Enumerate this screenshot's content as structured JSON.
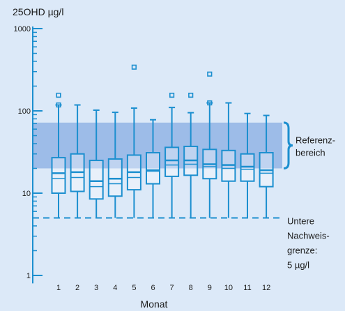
{
  "chart_data": {
    "type": "boxplot",
    "ylabel": "25OHD µg/l",
    "xlabel": "Monat",
    "y_scale": "log",
    "ylim": [
      0.8,
      1000
    ],
    "y_ticks": [
      {
        "value": 1,
        "label": "1"
      },
      {
        "value": 10,
        "label": "10"
      },
      {
        "value": 100,
        "label": "100"
      },
      {
        "value": 1000,
        "label": "1000"
      }
    ],
    "categories": [
      "1",
      "2",
      "3",
      "4",
      "5",
      "6",
      "7",
      "8",
      "9",
      "10",
      "11",
      "12"
    ],
    "boxes": [
      {
        "whisker_low": 5,
        "q1": 10,
        "median": 17.5,
        "q3": 27,
        "whisker_high": 118,
        "mean": 15,
        "outliers": [
          118,
          155
        ]
      },
      {
        "whisker_low": 5,
        "q1": 10.5,
        "median": 18,
        "q3": 30,
        "whisker_high": 118,
        "mean": 15.5,
        "outliers": []
      },
      {
        "whisker_low": 5,
        "q1": 8.5,
        "median": 14,
        "q3": 25,
        "whisker_high": 102,
        "mean": 12,
        "outliers": []
      },
      {
        "whisker_low": 5,
        "q1": 9.2,
        "median": 15,
        "q3": 26,
        "whisker_high": 96,
        "mean": 13,
        "outliers": []
      },
      {
        "whisker_low": 5,
        "q1": 11,
        "median": 18,
        "q3": 29,
        "whisker_high": 108,
        "mean": 15.5,
        "outliers": [
          340
        ]
      },
      {
        "whisker_low": 5,
        "q1": 13,
        "median": 19,
        "q3": 31,
        "whisker_high": 78,
        "mean": 18.5,
        "outliers": []
      },
      {
        "whisker_low": 5,
        "q1": 16,
        "median": 25,
        "q3": 36,
        "whisker_high": 110,
        "mean": 22,
        "outliers": [
          155
        ]
      },
      {
        "whisker_low": 5,
        "q1": 16.5,
        "median": 25,
        "q3": 37,
        "whisker_high": 95,
        "mean": 22.5,
        "outliers": [
          155
        ]
      },
      {
        "whisker_low": 5,
        "q1": 15,
        "median": 22.5,
        "q3": 34,
        "whisker_high": 125,
        "mean": 21,
        "outliers": [
          125,
          280
        ]
      },
      {
        "whisker_low": 5,
        "q1": 14,
        "median": 22,
        "q3": 33,
        "whisker_high": 125,
        "mean": 20,
        "outliers": []
      },
      {
        "whisker_low": 5,
        "q1": 14,
        "median": 21,
        "q3": 30,
        "whisker_high": 93,
        "mean": 19.5,
        "outliers": []
      },
      {
        "whisker_low": 5,
        "q1": 12,
        "median": 19,
        "q3": 31,
        "whisker_high": 88,
        "mean": 17.5,
        "outliers": []
      }
    ],
    "reference_range": {
      "low": 20,
      "high": 72,
      "label_lines": [
        "Referenz-",
        "bereich"
      ]
    },
    "detection_limit": {
      "value": 5,
      "label_lines": [
        "Untere",
        "Nachweis-",
        "grenze:",
        "5 µg/l"
      ]
    },
    "colors": {
      "background": "#dce9f8",
      "reference_band": "#9dbce8",
      "box_stroke": "#1c8fcf",
      "box_fill": "#ffffff",
      "axis": "#1c8fcf"
    }
  }
}
